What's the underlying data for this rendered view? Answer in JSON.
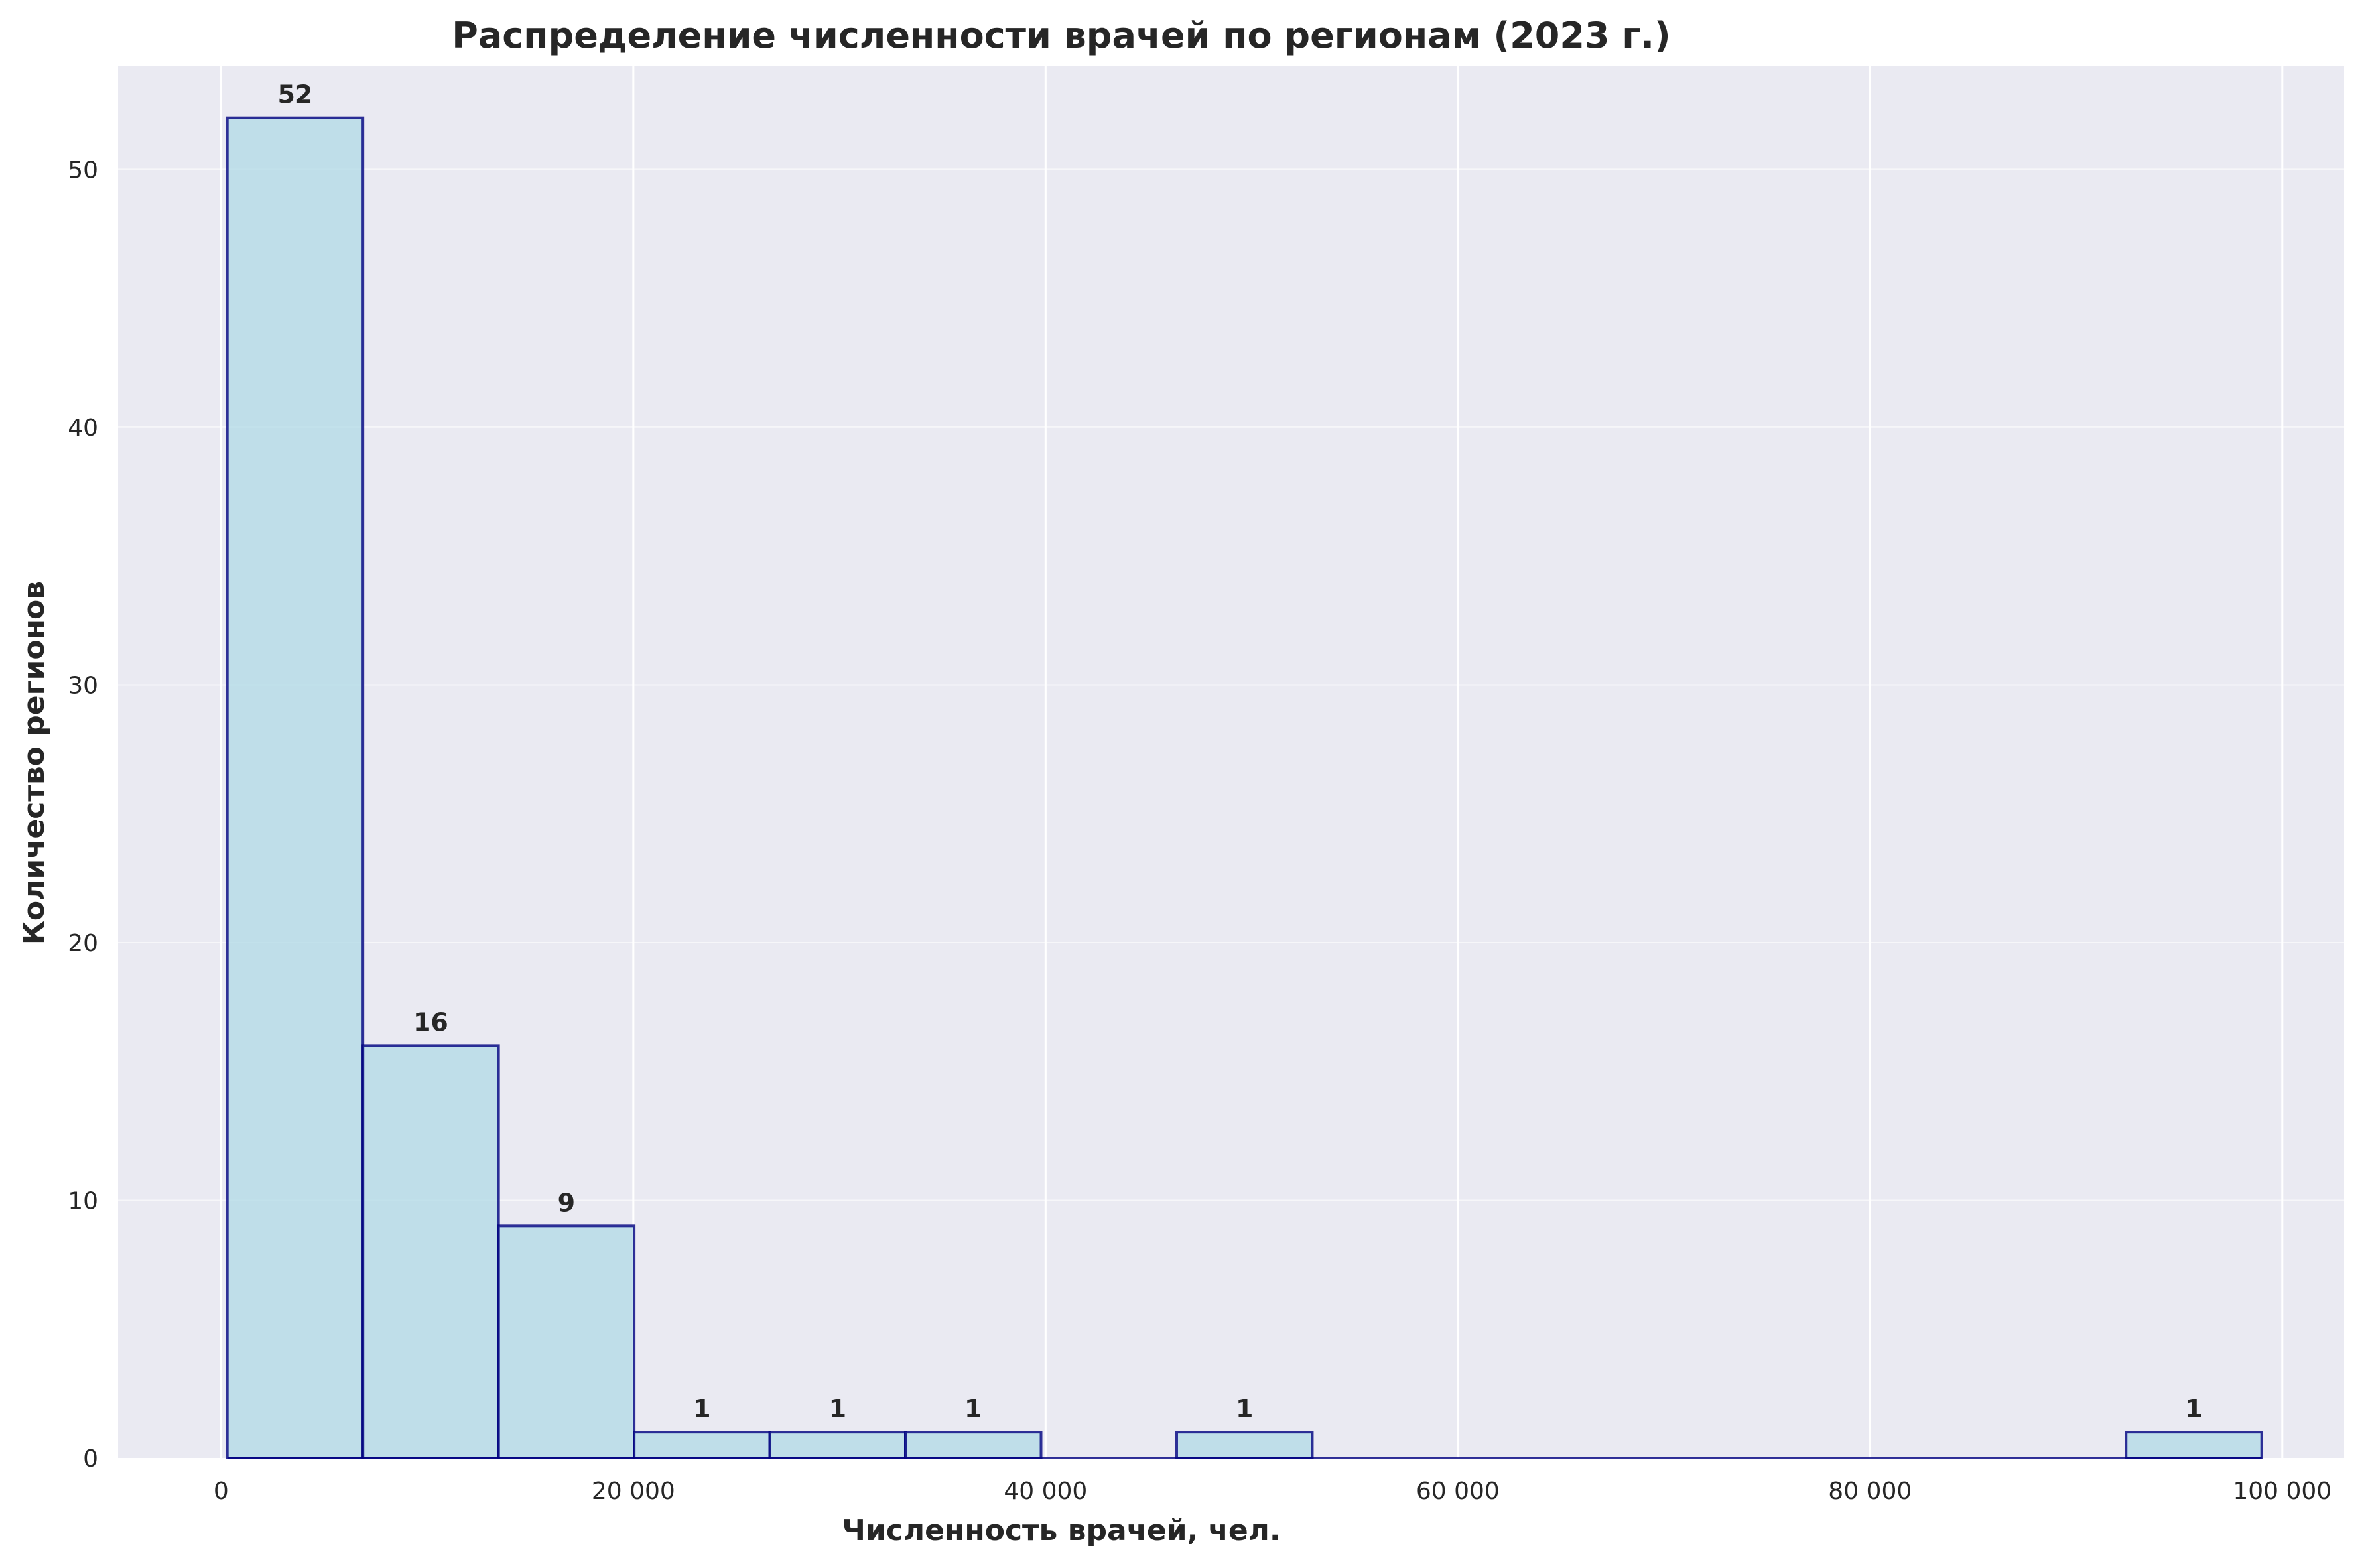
{
  "chart_data": {
    "type": "bar",
    "title": "Распределение численности врачей по регионам (2023 г.)",
    "xlabel": "Численность врачей, чел.",
    "ylabel": "Количество регионов",
    "xlim": [
      -5000,
      103000
    ],
    "ylim": [
      0,
      54
    ],
    "x_ticks": [
      0,
      20000,
      40000,
      60000,
      80000,
      100000
    ],
    "x_tick_labels": [
      "0",
      "20 000",
      "40 000",
      "60 000",
      "80 000",
      "100 000"
    ],
    "y_ticks": [
      0,
      10,
      20,
      30,
      40,
      50
    ],
    "y_tick_labels": [
      "0",
      "10",
      "20",
      "30",
      "40",
      "50"
    ],
    "bin_edges": [
      300,
      6880,
      13460,
      20040,
      26620,
      33200,
      39780,
      46360,
      52940,
      59520,
      66100,
      72680,
      79260,
      85840,
      92420,
      99000
    ],
    "counts": [
      52,
      16,
      9,
      1,
      1,
      1,
      0,
      1,
      0,
      0,
      0,
      0,
      0,
      0,
      1
    ],
    "grid": true,
    "colors": {
      "background": "#eaeaf2",
      "bar_fill": "#add8e6",
      "bar_edge": "#000080",
      "grid": "#ffffff"
    }
  }
}
